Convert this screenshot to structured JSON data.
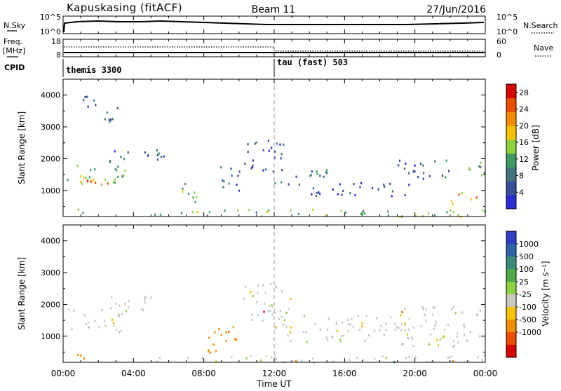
{
  "header": {
    "station": "Kapuskasing (fitACF)",
    "beam": "Beam 11",
    "date": "27/Jun/2016"
  },
  "status_panels": {
    "nsky_label": "N.Sky",
    "nsky_ticks": [
      "10^5",
      "10^0"
    ],
    "nsearch_label": "N.Search",
    "nsearch_ticks": [
      "10^5",
      "10^0"
    ],
    "freq_label_line1": "Freq.",
    "freq_label_line2": "[MHz]",
    "freq_ticks": [
      "18",
      "8"
    ],
    "nave_label": "Nave",
    "nave_ticks": [
      "60",
      "0"
    ],
    "cpid_label": "CPID",
    "cpid_segments": [
      {
        "name": "themis 3300",
        "start_hour": 0
      },
      {
        "name": "tau (fast) 503",
        "start_hour": 12
      }
    ]
  },
  "x_axis": {
    "label": "Time UT",
    "ticks": [
      "00:00",
      "04:00",
      "08:00",
      "12:00",
      "16:00",
      "20:00",
      "00:00"
    ],
    "range_hours": [
      0,
      24
    ]
  },
  "chart_data": [
    {
      "type": "heatmap",
      "name": "power",
      "ylabel": "Slant Range [km]",
      "ylim": [
        180,
        4500
      ],
      "yticks": [
        "1000",
        "2000",
        "3000",
        "4000"
      ],
      "colorbar_label": "Power [dB]",
      "colorbar_ticks": [
        "4",
        "8",
        "12",
        "16",
        "20",
        "24",
        "28"
      ],
      "colorbar_colors": [
        "#2b2bd8",
        "#35509a",
        "#41737e",
        "#3f9a62",
        "#8cd23c",
        "#f5c200",
        "#f28c00",
        "#ea4f00",
        "#d80000"
      ],
      "colorbar_range": [
        0,
        30
      ],
      "regions": [
        {
          "t0": 0.2,
          "t1": 3.5,
          "r0": 1150,
          "r1": 1900,
          "level": 14
        },
        {
          "t0": 0.2,
          "t1": 2.6,
          "r0": 1200,
          "r1": 1450,
          "level": 24
        },
        {
          "t0": 2.6,
          "t1": 6.0,
          "r0": 1800,
          "r1": 2300,
          "level": 7
        },
        {
          "t0": 0.2,
          "t1": 1.5,
          "r0": 300,
          "r1": 500,
          "level": 12
        },
        {
          "t0": 1.0,
          "t1": 2.0,
          "r0": 3500,
          "r1": 4200,
          "level": 5
        },
        {
          "t0": 2.2,
          "t1": 3.4,
          "r0": 3200,
          "r1": 3800,
          "level": 6
        },
        {
          "t0": 6.4,
          "t1": 7.8,
          "r0": 650,
          "r1": 1250,
          "level": 14
        },
        {
          "t0": 8.5,
          "t1": 10.0,
          "r0": 1000,
          "r1": 1800,
          "level": 6
        },
        {
          "t0": 10.2,
          "t1": 12.5,
          "r0": 1600,
          "r1": 2700,
          "level": 5
        },
        {
          "t0": 12.0,
          "t1": 15.0,
          "r0": 1200,
          "r1": 1800,
          "level": 8
        },
        {
          "t0": 14.0,
          "t1": 20.0,
          "r0": 850,
          "r1": 1300,
          "level": 5
        },
        {
          "t0": 19.0,
          "t1": 22.0,
          "r0": 1300,
          "r1": 2000,
          "level": 6
        },
        {
          "t0": 22.5,
          "t1": 24.0,
          "r0": 1500,
          "r1": 2000,
          "level": 14
        },
        {
          "t0": 22.0,
          "t1": 23.5,
          "r0": 550,
          "r1": 1000,
          "level": 20
        },
        {
          "t0": 5.0,
          "t1": 24.0,
          "r0": 200,
          "r1": 430,
          "level": 13
        }
      ]
    },
    {
      "type": "heatmap",
      "name": "velocity",
      "ylabel": "Slant Range [km]",
      "ylim": [
        180,
        4500
      ],
      "yticks": [
        "1000",
        "2000",
        "3000",
        "4000"
      ],
      "colorbar_label": "Velocity [m s⁻¹]",
      "colorbar_ticks": [
        "1000",
        "500",
        "100",
        "25",
        "-25",
        "-100",
        "-500",
        "-1000"
      ],
      "colorbar_colors": [
        "#2d3fc4",
        "#2f62a8",
        "#3a8a7a",
        "#4faa4a",
        "#8cd23c",
        "#c8c8c0",
        "#f5c200",
        "#f28c00",
        "#ea4f00",
        "#d80000"
      ],
      "regions": [
        {
          "t0": 0.2,
          "t1": 3.5,
          "r0": 1150,
          "r1": 1900,
          "color_index": 5
        },
        {
          "t0": 2.6,
          "t1": 6.0,
          "r0": 1800,
          "r1": 2300,
          "color_index": 5
        },
        {
          "t0": 0.2,
          "t1": 1.5,
          "r0": 300,
          "r1": 550,
          "color_index": 7
        },
        {
          "t0": 8.2,
          "t1": 10.0,
          "r0": 500,
          "r1": 1400,
          "color_index": 7
        },
        {
          "t0": 10.2,
          "t1": 13.0,
          "r0": 1500,
          "r1": 2700,
          "color_index": 5
        },
        {
          "t0": 12.0,
          "t1": 20.0,
          "r0": 850,
          "r1": 1700,
          "color_index": 5
        },
        {
          "t0": 19.0,
          "t1": 24.0,
          "r0": 700,
          "r1": 2000,
          "color_index": 5
        },
        {
          "t0": 5.0,
          "t1": 24.0,
          "r0": 200,
          "r1": 430,
          "color_index": 5
        }
      ]
    }
  ]
}
